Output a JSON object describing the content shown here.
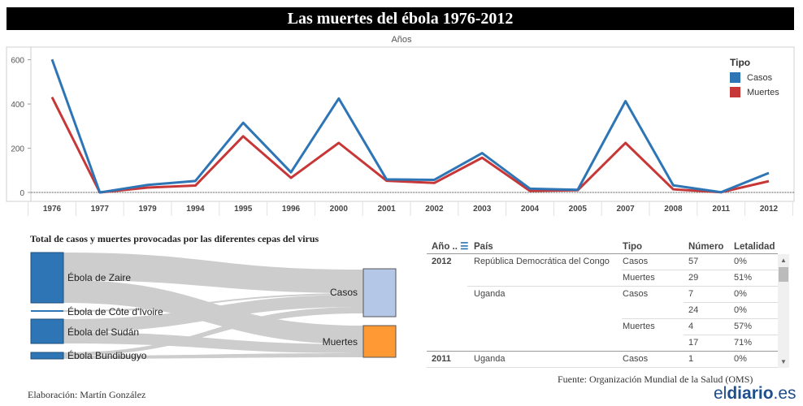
{
  "header": {
    "title": "Las muertes del ébola 1976-2012"
  },
  "chart_data": {
    "type": "line",
    "xlabel": "Años",
    "categories": [
      "1976",
      "1977",
      "1979",
      "1994",
      "1995",
      "1996",
      "2000",
      "2001",
      "2002",
      "2003",
      "2004",
      "2005",
      "2007",
      "2008",
      "2011",
      "2012"
    ],
    "series": [
      {
        "name": "Casos",
        "color": "#2e75b6",
        "values": [
          602,
          0,
          34,
          52,
          315,
          91,
          425,
          59,
          57,
          178,
          17,
          12,
          413,
          32,
          1,
          88
        ]
      },
      {
        "name": "Muertes",
        "color": "#c83737",
        "values": [
          431,
          0,
          22,
          31,
          254,
          66,
          224,
          53,
          43,
          157,
          7,
          10,
          224,
          14,
          1,
          51
        ]
      }
    ],
    "ylim": [
      0,
      650
    ],
    "yticks": [
      "0",
      "200",
      "400",
      "600"
    ],
    "legend_title": "Tipo",
    "legend": [
      "Casos",
      "Muertes"
    ]
  },
  "sankey": {
    "title": "Total de casos y muertes provocadas por las diferentes cepas del virus",
    "sources": [
      "Ébola de Zaire",
      "Ébola de Côte d'Ivoire",
      "Ébola del Sudán",
      "Ébola Bundibugyo"
    ],
    "targets": [
      "Casos",
      "Muertes"
    ],
    "colors": {
      "casos": "#b4c7e7",
      "muertes": "#ff9933",
      "source": "#2e75b6",
      "link": "#c8c8c8"
    }
  },
  "table": {
    "headers": [
      "Año ..",
      "País",
      "Tipo",
      "Número",
      "Letalidad"
    ],
    "rows": [
      {
        "year": "2012",
        "country": "República Democrática del Congo",
        "type": "Casos",
        "number": "57",
        "lethality": "0%"
      },
      {
        "year": "",
        "country": "",
        "type": "Muertes",
        "number": "29",
        "lethality": "51%"
      },
      {
        "year": "",
        "country": "Uganda",
        "type": "Casos",
        "number": "7",
        "lethality": "0%"
      },
      {
        "year": "",
        "country": "",
        "type": "",
        "number": "24",
        "lethality": "0%"
      },
      {
        "year": "",
        "country": "",
        "type": "Muertes",
        "number": "4",
        "lethality": "57%"
      },
      {
        "year": "",
        "country": "",
        "type": "",
        "number": "17",
        "lethality": "71%"
      },
      {
        "year": "2011",
        "country": "Uganda",
        "type": "Casos",
        "number": "1",
        "lethality": "0%"
      }
    ]
  },
  "footer": {
    "source": "Fuente: Organización Mundial de la Salud (OMS)",
    "author": "Elaboración: Martín González",
    "logo_a": "el",
    "logo_b": "diario",
    "logo_c": ".es"
  }
}
